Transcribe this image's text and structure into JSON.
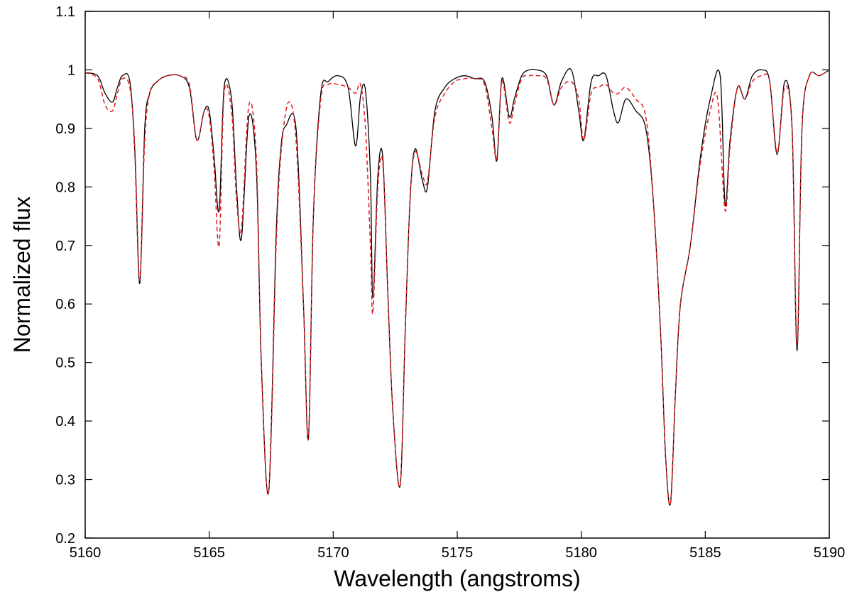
{
  "chart_data": {
    "type": "line",
    "title": "",
    "xlabel": "Wavelength (angstroms)",
    "ylabel": "Normalized flux",
    "xlim": [
      5160,
      5190
    ],
    "ylim": [
      0.2,
      1.1
    ],
    "x_ticks": [
      5160,
      5165,
      5170,
      5175,
      5180,
      5185,
      5190
    ],
    "y_ticks": [
      0.2,
      0.3,
      0.4,
      0.5,
      0.6,
      0.7,
      0.8,
      0.9,
      1.0,
      1.1
    ],
    "x_tick_labels": [
      "5160",
      "5165",
      "5170",
      "5175",
      "5180",
      "5185",
      "5190"
    ],
    "y_tick_labels": [
      "0.2",
      "0.3",
      "0.4",
      "0.5",
      "0.6",
      "0.7",
      "0.8",
      "0.9",
      "1",
      "1.1"
    ],
    "grid": false,
    "legend": "none",
    "series": [
      {
        "style": "solid",
        "color": "#000000",
        "x": [
          5160.0,
          5160.5,
          5160.8,
          5161.1,
          5161.3,
          5161.5,
          5161.8,
          5162.0,
          5162.2,
          5162.4,
          5162.6,
          5162.9,
          5163.3,
          5163.8,
          5164.2,
          5164.5,
          5164.8,
          5165.0,
          5165.2,
          5165.4,
          5165.6,
          5165.9,
          5166.1,
          5166.3,
          5166.6,
          5166.9,
          5167.1,
          5167.4,
          5167.7,
          5167.9,
          5168.1,
          5168.5,
          5168.8,
          5169.0,
          5169.2,
          5169.5,
          5169.8,
          5170.2,
          5170.6,
          5170.9,
          5171.1,
          5171.3,
          5171.5,
          5171.6,
          5171.8,
          5172.0,
          5172.2,
          5172.4,
          5172.7,
          5172.9,
          5173.1,
          5173.3,
          5173.6,
          5173.8,
          5174.1,
          5174.5,
          5174.9,
          5175.3,
          5175.7,
          5176.1,
          5176.4,
          5176.6,
          5176.8,
          5177.1,
          5177.3,
          5177.6,
          5177.9,
          5178.2,
          5178.6,
          5178.9,
          5179.2,
          5179.6,
          5179.9,
          5180.1,
          5180.4,
          5180.7,
          5181.0,
          5181.3,
          5181.5,
          5181.8,
          5182.2,
          5182.6,
          5182.9,
          5183.2,
          5183.4,
          5183.6,
          5183.8,
          5184.0,
          5184.4,
          5184.8,
          5185.2,
          5185.6,
          5185.8,
          5186.0,
          5186.3,
          5186.6,
          5186.9,
          5187.3,
          5187.6,
          5187.9,
          5188.2,
          5188.5,
          5188.7,
          5188.9,
          5189.2,
          5189.6,
          5190.0
        ],
        "y": [
          0.995,
          0.99,
          0.96,
          0.945,
          0.97,
          0.99,
          0.98,
          0.86,
          0.635,
          0.9,
          0.96,
          0.98,
          0.99,
          0.99,
          0.97,
          0.88,
          0.93,
          0.93,
          0.85,
          0.76,
          0.97,
          0.95,
          0.8,
          0.712,
          0.92,
          0.83,
          0.5,
          0.28,
          0.72,
          0.87,
          0.905,
          0.9,
          0.6,
          0.37,
          0.75,
          0.96,
          0.98,
          0.99,
          0.97,
          0.87,
          0.955,
          0.965,
          0.82,
          0.61,
          0.82,
          0.85,
          0.62,
          0.42,
          0.29,
          0.55,
          0.78,
          0.865,
          0.81,
          0.8,
          0.93,
          0.97,
          0.985,
          0.99,
          0.985,
          0.98,
          0.92,
          0.845,
          0.985,
          0.92,
          0.95,
          0.99,
          1.0,
          1.0,
          0.99,
          0.94,
          0.98,
          1.0,
          0.93,
          0.88,
          0.98,
          0.99,
          0.99,
          0.93,
          0.91,
          0.95,
          0.93,
          0.9,
          0.78,
          0.55,
          0.34,
          0.26,
          0.45,
          0.6,
          0.7,
          0.85,
          0.95,
          0.99,
          0.77,
          0.88,
          0.97,
          0.95,
          0.99,
          1.0,
          0.98,
          0.855,
          0.98,
          0.9,
          0.52,
          0.9,
          0.99,
          0.99,
          1.0
        ]
      },
      {
        "style": "dashed",
        "color": "#e41a1c",
        "x": [
          5160.0,
          5160.5,
          5160.8,
          5161.1,
          5161.3,
          5161.5,
          5161.8,
          5162.0,
          5162.2,
          5162.4,
          5162.6,
          5162.9,
          5163.3,
          5163.8,
          5164.2,
          5164.5,
          5164.8,
          5165.0,
          5165.2,
          5165.4,
          5165.6,
          5165.9,
          5166.1,
          5166.3,
          5166.6,
          5166.9,
          5167.1,
          5167.4,
          5167.7,
          5167.9,
          5168.2,
          5168.5,
          5168.8,
          5169.0,
          5169.2,
          5169.5,
          5169.8,
          5170.2,
          5170.6,
          5170.9,
          5171.1,
          5171.3,
          5171.5,
          5171.6,
          5171.8,
          5172.0,
          5172.2,
          5172.4,
          5172.7,
          5172.9,
          5173.1,
          5173.3,
          5173.6,
          5173.8,
          5174.1,
          5174.5,
          5174.9,
          5175.3,
          5175.7,
          5176.1,
          5176.4,
          5176.6,
          5176.8,
          5177.1,
          5177.3,
          5177.6,
          5177.9,
          5178.2,
          5178.6,
          5178.9,
          5179.2,
          5179.6,
          5179.9,
          5180.1,
          5180.4,
          5180.7,
          5181.0,
          5181.3,
          5181.5,
          5181.8,
          5182.2,
          5182.6,
          5182.9,
          5183.2,
          5183.4,
          5183.6,
          5183.8,
          5184.0,
          5184.4,
          5184.8,
          5185.2,
          5185.5,
          5185.8,
          5186.0,
          5186.3,
          5186.6,
          5186.9,
          5187.3,
          5187.6,
          5187.9,
          5188.2,
          5188.5,
          5188.7,
          5188.9,
          5189.2,
          5189.6,
          5190.0
        ],
        "y": [
          0.995,
          0.985,
          0.94,
          0.93,
          0.96,
          0.985,
          0.97,
          0.87,
          0.64,
          0.88,
          0.96,
          0.98,
          0.99,
          0.99,
          0.975,
          0.88,
          0.93,
          0.92,
          0.83,
          0.7,
          0.96,
          0.93,
          0.78,
          0.73,
          0.94,
          0.85,
          0.5,
          0.28,
          0.7,
          0.86,
          0.945,
          0.88,
          0.6,
          0.37,
          0.75,
          0.95,
          0.975,
          0.975,
          0.97,
          0.96,
          0.975,
          0.9,
          0.7,
          0.585,
          0.8,
          0.84,
          0.62,
          0.42,
          0.29,
          0.55,
          0.78,
          0.86,
          0.82,
          0.81,
          0.92,
          0.96,
          0.98,
          0.985,
          0.985,
          0.975,
          0.9,
          0.85,
          0.98,
          0.91,
          0.94,
          0.985,
          0.99,
          0.99,
          0.985,
          0.94,
          0.97,
          0.98,
          0.95,
          0.88,
          0.96,
          0.97,
          0.975,
          0.96,
          0.96,
          0.97,
          0.95,
          0.92,
          0.78,
          0.55,
          0.34,
          0.26,
          0.45,
          0.6,
          0.7,
          0.84,
          0.93,
          0.95,
          0.76,
          0.87,
          0.97,
          0.95,
          0.98,
          0.99,
          0.98,
          0.86,
          0.97,
          0.9,
          0.53,
          0.9,
          0.99,
          0.99,
          1.0
        ]
      }
    ]
  }
}
